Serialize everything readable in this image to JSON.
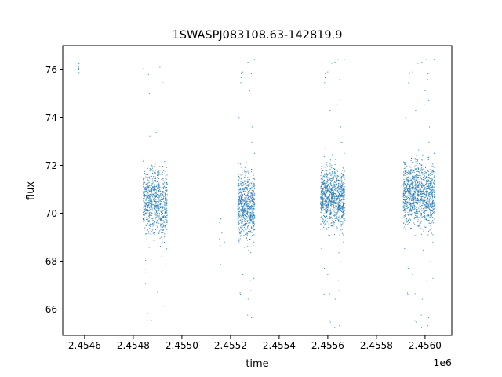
{
  "chart_data": {
    "type": "scatter",
    "title": "1SWASPJ083108.63-142819.9",
    "xlabel": "time",
    "ylabel": "flux",
    "x_offset_label": "1e6",
    "xlim": [
      2.45451,
      2.45611
    ],
    "ylim": [
      64.9,
      77.0
    ],
    "x_ticks": [
      2.4546,
      2.4548,
      2.455,
      2.4552,
      2.4554,
      2.4556,
      2.4558,
      2.456
    ],
    "x_tick_labels": [
      "2.4546",
      "2.4548",
      "2.4550",
      "2.4552",
      "2.4554",
      "2.4556",
      "2.4558",
      "2.4560"
    ],
    "y_ticks": [
      66,
      68,
      70,
      72,
      74,
      76
    ],
    "y_tick_labels": [
      "66",
      "68",
      "70",
      "72",
      "74",
      "76"
    ],
    "grid": false,
    "marker_color": "#1f77b4",
    "series": [
      {
        "clusters": [
          {
            "x_range": [
              2.454575,
              2.454578
            ],
            "y_center": 75.9,
            "y_spread": 0.35,
            "n": 6
          },
          {
            "x_range": [
              2.45484,
              2.45494
            ],
            "y_center": 70.5,
            "y_spread": 0.9,
            "n": 900
          },
          {
            "x_range": [
              2.45515,
              2.45518
            ],
            "y_center": 69.2,
            "y_spread": 0.7,
            "n": 10
          },
          {
            "x_range": [
              2.45523,
              2.4553
            ],
            "y_center": 70.3,
            "y_spread": 0.9,
            "n": 800
          },
          {
            "x_range": [
              2.45557,
              2.45567
            ],
            "y_center": 70.7,
            "y_spread": 0.85,
            "n": 1100
          },
          {
            "x_range": [
              2.45591,
              2.45604
            ],
            "y_center": 70.8,
            "y_spread": 0.9,
            "n": 1300
          }
        ]
      }
    ]
  }
}
